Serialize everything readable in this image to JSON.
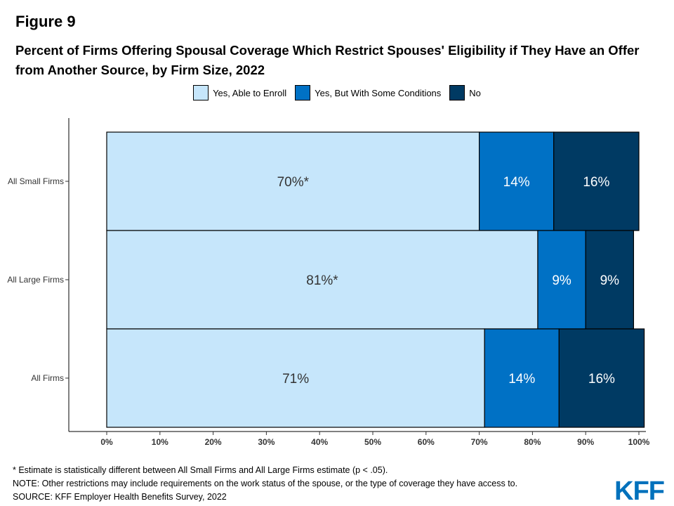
{
  "figure_label": "Figure 9",
  "logo_text": "KFF",
  "footnotes": [
    "* Estimate is statistically different between All Small Firms and All Large Firms estimate (p < .05).",
    "NOTE: Other restrictions may include requirements on the work status of the spouse, or the type of coverage they have access to.",
    "SOURCE: KFF Employer Health Benefits Survey, 2022"
  ],
  "chart_data": {
    "type": "bar",
    "orientation": "horizontal",
    "stacked": true,
    "title": "Percent of Firms Offering Spousal Coverage Which Restrict Spouses' Eligibility if They Have an Offer from Another Source, by Firm Size, 2022",
    "categories": [
      "All Small Firms",
      "All Large Firms",
      "All Firms"
    ],
    "series": [
      {
        "name": "Yes, Able to Enroll",
        "color": "#c6e6fb",
        "label_color": "#333333",
        "values": [
          70,
          81,
          71
        ],
        "labels": [
          "70%*",
          "81%*",
          "71%"
        ]
      },
      {
        "name": "Yes, But With Some Conditions",
        "color": "#0071c5",
        "label_color": "#ffffff",
        "values": [
          14,
          9,
          14
        ],
        "labels": [
          "14%",
          "9%",
          "14%"
        ]
      },
      {
        "name": "No",
        "color": "#003a63",
        "label_color": "#ffffff",
        "values": [
          16,
          9,
          16
        ],
        "labels": [
          "16%",
          "9%",
          "16%"
        ]
      }
    ],
    "x_ticks": [
      "0%",
      "10%",
      "20%",
      "30%",
      "40%",
      "50%",
      "60%",
      "70%",
      "80%",
      "90%",
      "100%"
    ],
    "xlim": [
      0,
      100
    ],
    "legend_position": "top",
    "grid": false
  }
}
